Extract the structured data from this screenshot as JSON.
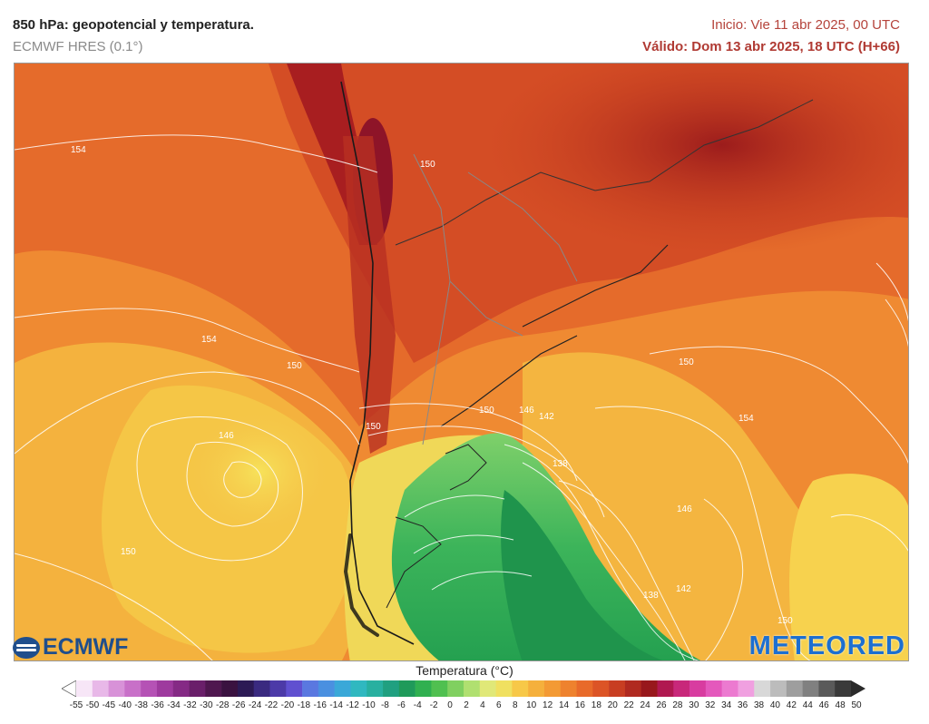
{
  "header": {
    "title": "850 hPa: geopotencial y temperatura.",
    "model": "ECMWF HRES (0.1°)",
    "run": "Inicio: Vie 11 abr 2025, 00 UTC",
    "valid": "Válido: Dom 13 abr 2025, 18 UTC (H+66)"
  },
  "map": {
    "contour_labels": [
      "154",
      "150",
      "154",
      "150",
      "146",
      "150",
      "150",
      "150",
      "146",
      "142",
      "138",
      "150",
      "154",
      "146",
      "142",
      "138",
      "150"
    ]
  },
  "logos": {
    "ecmwf": "ECMWF",
    "meteored": "METEORED"
  },
  "legend": {
    "title": "Temperatura (°C)",
    "labels": [
      "-55",
      "-50",
      "-45",
      "-40",
      "-38",
      "-36",
      "-34",
      "-32",
      "-30",
      "-28",
      "-26",
      "-24",
      "-22",
      "-20",
      "-18",
      "-16",
      "-14",
      "-12",
      "-10",
      "-8",
      "-6",
      "-4",
      "-2",
      "0",
      "2",
      "4",
      "6",
      "8",
      "10",
      "12",
      "14",
      "16",
      "18",
      "20",
      "22",
      "24",
      "26",
      "28",
      "30",
      "32",
      "34",
      "36",
      "38",
      "40",
      "42",
      "44",
      "46",
      "48",
      "50"
    ],
    "colors": [
      "#f7e6f7",
      "#e8b8e8",
      "#d892d8",
      "#c870c8",
      "#b552b5",
      "#9e3a9e",
      "#852a85",
      "#6a1f6a",
      "#4f174f",
      "#3a1240",
      "#2c1a55",
      "#3a2a80",
      "#4c3aa8",
      "#6050d0",
      "#5a78e0",
      "#4a90e0",
      "#3aa8d8",
      "#30b8c0",
      "#28b0a0",
      "#20a080",
      "#1f9a5a",
      "#30b050",
      "#50c050",
      "#80d060",
      "#b0e070",
      "#e0e878",
      "#f0e060",
      "#f7c848",
      "#f5b03c",
      "#f39a34",
      "#ee822e",
      "#e86a2a",
      "#dc5426",
      "#c83e22",
      "#b02a20",
      "#98181c",
      "#b01850",
      "#c8287a",
      "#d83ca0",
      "#e458bc",
      "#ec7ad0",
      "#f0a0e0",
      "#d8d8d8",
      "#bcbcbc",
      "#9e9e9e",
      "#808080",
      "#5a5a5a",
      "#3a3a3a"
    ]
  }
}
